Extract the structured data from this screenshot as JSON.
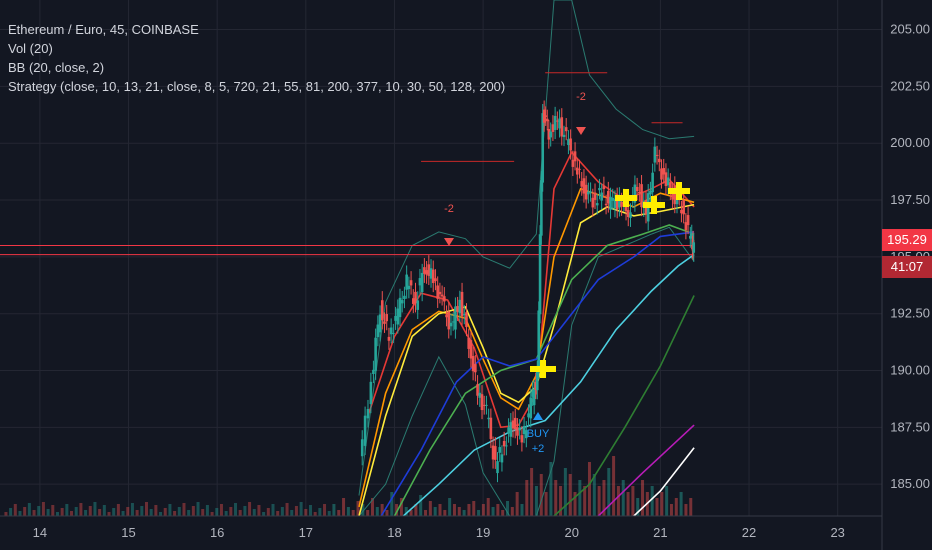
{
  "legend": {
    "title": "Ethereum / Euro, 45, COINBASE",
    "vol": "Vol (20)",
    "bb": "BB (20, close, 2)",
    "strategy": "Strategy (close, 10, 13, 21, close, 8, 5, 720, 21, 55, 81, 200, 377, 10, 30, 50, 128, 200)"
  },
  "price_axis": {
    "last_price": "195.29",
    "countdown": "41:07",
    "last_price_color": "#f23645"
  },
  "signals": {
    "sell_1": "-2",
    "sell_2": "-2",
    "buy_text": "BUY",
    "buy_qty": "+2"
  },
  "colors": {
    "background": "#131722",
    "grid": "#242733",
    "candle_up": "#26a69a",
    "candle_down": "#ef5350",
    "ma_red": "#e53935",
    "ma_orange": "#ff9800",
    "ma_yellow": "#ffeb3b",
    "ma_green": "#4caf50",
    "ma_blue": "#1e3cd8",
    "ma_cyan": "#4dd0e1",
    "ma_darkgreen": "#2e7d32",
    "ma_magenta": "#b71cb7",
    "ma_white": "#ffffff",
    "bb_band": "#2a7a70"
  },
  "chart_data": {
    "type": "candlestick",
    "symbol": "Ethereum / Euro",
    "interval": "45",
    "exchange": "COINBASE",
    "x_ticks": [
      "14",
      "15",
      "16",
      "17",
      "18",
      "19",
      "20",
      "21",
      "22",
      "23"
    ],
    "y_ticks": [
      185.0,
      187.5,
      190.0,
      192.5,
      195.0,
      197.5,
      200.0,
      202.5,
      205.0
    ],
    "ylim": [
      183.6,
      206.3
    ],
    "xlim": [
      13.55,
      23.5
    ],
    "last_price": 195.29,
    "price_series": [
      {
        "x": 17.62,
        "y": 186.0
      },
      {
        "x": 17.75,
        "y": 189.5
      },
      {
        "x": 17.85,
        "y": 192.8
      },
      {
        "x": 17.95,
        "y": 191.5
      },
      {
        "x": 18.05,
        "y": 192.5
      },
      {
        "x": 18.15,
        "y": 193.9
      },
      {
        "x": 18.25,
        "y": 193.0
      },
      {
        "x": 18.35,
        "y": 194.6
      },
      {
        "x": 18.45,
        "y": 194.0
      },
      {
        "x": 18.55,
        "y": 193.0
      },
      {
        "x": 18.65,
        "y": 191.8
      },
      {
        "x": 18.75,
        "y": 193.2
      },
      {
        "x": 18.85,
        "y": 191.3
      },
      {
        "x": 18.95,
        "y": 189.0
      },
      {
        "x": 19.05,
        "y": 188.2
      },
      {
        "x": 19.15,
        "y": 185.8
      },
      {
        "x": 19.25,
        "y": 186.8
      },
      {
        "x": 19.35,
        "y": 187.8
      },
      {
        "x": 19.45,
        "y": 186.9
      },
      {
        "x": 19.55,
        "y": 188.5
      },
      {
        "x": 19.62,
        "y": 189.8
      },
      {
        "x": 19.68,
        "y": 201.5
      },
      {
        "x": 19.75,
        "y": 200.5
      },
      {
        "x": 19.85,
        "y": 201.0
      },
      {
        "x": 19.95,
        "y": 200.2
      },
      {
        "x": 20.05,
        "y": 199.0
      },
      {
        "x": 20.15,
        "y": 198.0
      },
      {
        "x": 20.25,
        "y": 197.5
      },
      {
        "x": 20.35,
        "y": 197.8
      },
      {
        "x": 20.45,
        "y": 197.3
      },
      {
        "x": 20.55,
        "y": 197.5
      },
      {
        "x": 20.65,
        "y": 197.0
      },
      {
        "x": 20.75,
        "y": 198.2
      },
      {
        "x": 20.85,
        "y": 196.8
      },
      {
        "x": 20.95,
        "y": 199.5
      },
      {
        "x": 21.05,
        "y": 198.5
      },
      {
        "x": 21.15,
        "y": 197.8
      },
      {
        "x": 21.25,
        "y": 197.2
      },
      {
        "x": 21.35,
        "y": 195.8
      },
      {
        "x": 21.38,
        "y": 195.29
      }
    ],
    "moving_averages": [
      {
        "color": "ma_red",
        "points": [
          [
            17.7,
            188.0
          ],
          [
            18.0,
            191.5
          ],
          [
            18.3,
            193.4
          ],
          [
            18.6,
            193.1
          ],
          [
            18.9,
            191.0
          ],
          [
            19.2,
            187.5
          ],
          [
            19.4,
            187.6
          ],
          [
            19.6,
            189.0
          ],
          [
            19.8,
            198.0
          ],
          [
            20.0,
            199.6
          ],
          [
            20.3,
            198.3
          ],
          [
            20.6,
            197.5
          ],
          [
            20.9,
            198.0
          ],
          [
            21.1,
            198.4
          ],
          [
            21.38,
            197.2
          ]
        ]
      },
      {
        "color": "ma_orange",
        "points": [
          [
            17.6,
            184.0
          ],
          [
            17.9,
            189.0
          ],
          [
            18.2,
            191.8
          ],
          [
            18.5,
            192.6
          ],
          [
            18.8,
            192.3
          ],
          [
            19.0,
            190.5
          ],
          [
            19.2,
            188.8
          ],
          [
            19.4,
            188.3
          ],
          [
            19.6,
            189.8
          ],
          [
            19.8,
            195.0
          ],
          [
            20.1,
            198.0
          ],
          [
            20.4,
            197.6
          ],
          [
            20.7,
            197.2
          ],
          [
            21.0,
            197.8
          ],
          [
            21.38,
            197.4
          ]
        ]
      },
      {
        "color": "ma_yellow",
        "points": [
          [
            17.6,
            183.6
          ],
          [
            17.9,
            188.0
          ],
          [
            18.2,
            191.5
          ],
          [
            18.5,
            192.5
          ],
          [
            18.8,
            192.8
          ],
          [
            19.0,
            191.0
          ],
          [
            19.2,
            189.0
          ],
          [
            19.4,
            188.6
          ],
          [
            19.6,
            189.3
          ],
          [
            19.8,
            192.0
          ],
          [
            20.1,
            196.5
          ],
          [
            20.4,
            197.2
          ],
          [
            20.7,
            196.8
          ],
          [
            21.0,
            197.0
          ],
          [
            21.38,
            197.3
          ]
        ]
      },
      {
        "color": "ma_green",
        "points": [
          [
            18.0,
            183.6
          ],
          [
            18.4,
            186.5
          ],
          [
            18.8,
            189.0
          ],
          [
            19.2,
            190.0
          ],
          [
            19.6,
            190.5
          ],
          [
            20.0,
            194.0
          ],
          [
            20.4,
            195.5
          ],
          [
            20.8,
            196.0
          ],
          [
            21.1,
            196.4
          ],
          [
            21.38,
            196.0
          ]
        ]
      },
      {
        "color": "ma_blue",
        "points": [
          [
            17.85,
            183.6
          ],
          [
            18.3,
            186.5
          ],
          [
            18.7,
            189.5
          ],
          [
            19.0,
            190.6
          ],
          [
            19.3,
            190.2
          ],
          [
            19.6,
            190.5
          ],
          [
            19.9,
            192.0
          ],
          [
            20.3,
            194.0
          ],
          [
            20.7,
            195.0
          ],
          [
            21.0,
            195.9
          ],
          [
            21.38,
            196.1
          ]
        ]
      },
      {
        "color": "ma_cyan",
        "points": [
          [
            18.1,
            183.6
          ],
          [
            18.5,
            185.0
          ],
          [
            18.9,
            186.5
          ],
          [
            19.3,
            187.3
          ],
          [
            19.7,
            187.8
          ],
          [
            20.1,
            189.5
          ],
          [
            20.5,
            191.8
          ],
          [
            20.9,
            193.5
          ],
          [
            21.2,
            194.6
          ],
          [
            21.38,
            195.1
          ]
        ]
      },
      {
        "color": "ma_darkgreen",
        "points": [
          [
            19.8,
            183.6
          ],
          [
            20.2,
            185.0
          ],
          [
            20.6,
            187.5
          ],
          [
            21.0,
            190.2
          ],
          [
            21.38,
            193.3
          ]
        ]
      },
      {
        "color": "ma_magenta",
        "points": [
          [
            20.3,
            183.6
          ],
          [
            20.8,
            185.5
          ],
          [
            21.38,
            187.6
          ]
        ]
      },
      {
        "color": "ma_white",
        "points": [
          [
            20.7,
            183.6
          ],
          [
            21.0,
            184.7
          ],
          [
            21.38,
            186.6
          ]
        ]
      }
    ],
    "bollinger": {
      "upper": [
        [
          17.6,
          184.5
        ],
        [
          17.9,
          193.0
        ],
        [
          18.2,
          195.5
        ],
        [
          18.5,
          196.1
        ],
        [
          18.8,
          195.8
        ],
        [
          19.0,
          195.0
        ],
        [
          19.3,
          194.5
        ],
        [
          19.6,
          196.0
        ],
        [
          19.8,
          206.3
        ],
        [
          20.0,
          206.3
        ],
        [
          20.2,
          203.0
        ],
        [
          20.5,
          201.5
        ],
        [
          20.8,
          200.6
        ],
        [
          21.1,
          200.2
        ],
        [
          21.38,
          200.3
        ]
      ],
      "lower": [
        [
          17.6,
          183.6
        ],
        [
          17.9,
          185.0
        ],
        [
          18.2,
          188.0
        ],
        [
          18.5,
          190.6
        ],
        [
          18.8,
          188.5
        ],
        [
          19.0,
          185.5
        ],
        [
          19.3,
          183.6
        ],
        [
          19.6,
          183.6
        ],
        [
          19.8,
          186.0
        ],
        [
          20.0,
          192.0
        ],
        [
          20.3,
          195.0
        ],
        [
          20.6,
          195.5
        ],
        [
          20.9,
          196.0
        ],
        [
          21.1,
          196.3
        ],
        [
          21.38,
          194.8
        ]
      ]
    },
    "horizontal_levels": [
      {
        "value": 199.2,
        "x0": 18.3,
        "x1": 19.35,
        "color": "#c62828"
      },
      {
        "value": 203.1,
        "x0": 19.7,
        "x1": 20.4,
        "color": "#c62828"
      },
      {
        "value": 200.9,
        "x0": 20.9,
        "x1": 21.25,
        "color": "#c62828"
      },
      {
        "value": 195.5,
        "x0": 13.55,
        "x1": 21.38,
        "color": "#f23645"
      },
      {
        "value": 195.1,
        "x0": 13.55,
        "x1": 21.38,
        "color": "#f23645"
      }
    ],
    "volume_relative": [
      0.2,
      0.1,
      0.3,
      0.15,
      0.1,
      0.25,
      0.2,
      0.1,
      0.3,
      0.15,
      0.2,
      0.1,
      0.4,
      0.2,
      0.3,
      0.15,
      0.1,
      0.2,
      0.35,
      0.1,
      0.25,
      0.15,
      0.2,
      0.1,
      0.3,
      0.2,
      0.15,
      0.1,
      0.2,
      0.25,
      0.1,
      0.2,
      0.3,
      0.15,
      0.2,
      0.1,
      0.25,
      0.15,
      0.4,
      0.2,
      0.6,
      0.8,
      0.5,
      0.7,
      0.4,
      0.9,
      0.6,
      0.5,
      0.8,
      0.7,
      0.4,
      0.6,
      0.5,
      0.9,
      0.7,
      0.5,
      0.6,
      0.8,
      1.0,
      0.5,
      0.6,
      0.4,
      0.5,
      0.3,
      0.6,
      0.4,
      0.5,
      0.3,
      0.4,
      0.5,
      0.2,
      0.3,
      0.4,
      0.2,
      0.3
    ]
  }
}
